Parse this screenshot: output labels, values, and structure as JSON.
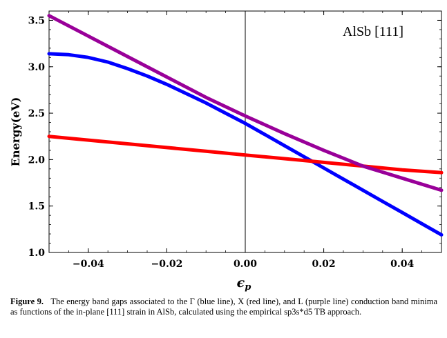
{
  "chart_data": {
    "type": "line",
    "title": "",
    "inset_label": "AlSb [111]",
    "xlabel": "ϵp",
    "xlabel_main": "ϵ",
    "xlabel_sub": "p",
    "ylabel": "Energy(eV)",
    "xlim": [
      -0.05,
      0.05
    ],
    "ylim": [
      1.0,
      3.6
    ],
    "x_ticks": [
      -0.04,
      -0.02,
      0.0,
      0.02,
      0.04
    ],
    "x_tick_labels": [
      "−0.04",
      "−0.02",
      "0.00",
      "0.02",
      "0.04"
    ],
    "y_ticks": [
      1.0,
      1.5,
      2.0,
      2.5,
      3.0,
      3.5
    ],
    "y_tick_labels": [
      "1.0",
      "1.5",
      "2.0",
      "2.5",
      "3.0",
      "3.5"
    ],
    "vertical_line_x": 0.0,
    "series": [
      {
        "name": "Γ",
        "color": "#0000ff",
        "x": [
          -0.05,
          -0.045,
          -0.04,
          -0.035,
          -0.03,
          -0.025,
          -0.02,
          -0.015,
          -0.01,
          -0.005,
          0.0,
          0.005,
          0.01,
          0.015,
          0.02,
          0.025,
          0.03,
          0.035,
          0.04,
          0.045,
          0.05
        ],
        "y": [
          3.14,
          3.13,
          3.1,
          3.05,
          2.98,
          2.9,
          2.81,
          2.71,
          2.61,
          2.5,
          2.39,
          2.27,
          2.15,
          2.03,
          1.91,
          1.79,
          1.67,
          1.55,
          1.43,
          1.31,
          1.19
        ]
      },
      {
        "name": "X",
        "color": "#ff0000",
        "x": [
          -0.05,
          -0.04,
          -0.03,
          -0.02,
          -0.01,
          0.0,
          0.01,
          0.02,
          0.03,
          0.04,
          0.05
        ],
        "y": [
          2.25,
          2.21,
          2.17,
          2.13,
          2.09,
          2.05,
          2.01,
          1.97,
          1.93,
          1.89,
          1.86
        ]
      },
      {
        "name": "L",
        "color": "#990099",
        "x": [
          -0.05,
          -0.04,
          -0.03,
          -0.02,
          -0.01,
          0.0,
          0.01,
          0.02,
          0.03,
          0.04,
          0.05
        ],
        "y": [
          3.55,
          3.33,
          3.11,
          2.89,
          2.67,
          2.47,
          2.28,
          2.1,
          1.93,
          1.8,
          1.67
        ]
      }
    ]
  },
  "caption": {
    "label": "Figure 9.",
    "text": "The energy band gaps associated to the Γ (blue line), X (red line), and L (purple line) conduction band minima as functions of the in-plane [111] strain in AlSb, calculated using the empirical sp3s*d5 TB approach."
  }
}
